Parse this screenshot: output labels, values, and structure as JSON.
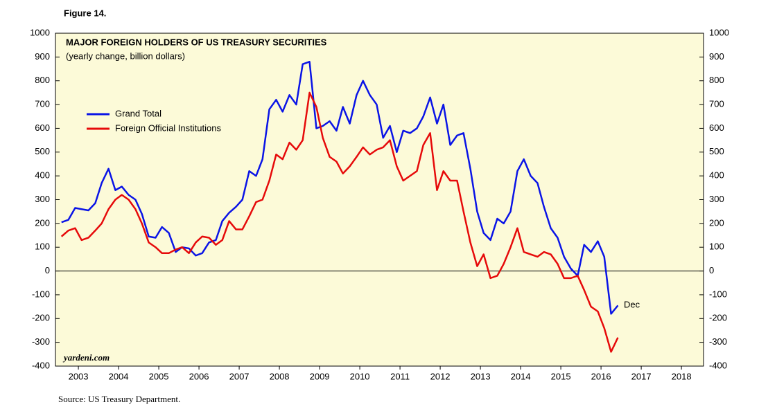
{
  "chart_data": {
    "type": "line",
    "figure_label": "Figure 14.",
    "title": "MAJOR FOREIGN HOLDERS OF US TREASURY SECURITIES",
    "subtitle": "(yearly change, billion dollars)",
    "source": "Source: US Treasury Department.",
    "watermark": "yardeni.com",
    "annotation": "Dec",
    "x": [
      2003.08,
      2003.25,
      2003.42,
      2003.58,
      2003.75,
      2003.92,
      2004.08,
      2004.25,
      2004.42,
      2004.58,
      2004.75,
      2004.92,
      2005.08,
      2005.25,
      2005.42,
      2005.58,
      2005.75,
      2005.92,
      2006.08,
      2006.25,
      2006.42,
      2006.58,
      2006.75,
      2006.92,
      2007.08,
      2007.25,
      2007.42,
      2007.58,
      2007.75,
      2007.92,
      2008.08,
      2008.25,
      2008.42,
      2008.58,
      2008.75,
      2008.92,
      2009.08,
      2009.25,
      2009.42,
      2009.58,
      2009.75,
      2009.92,
      2010.08,
      2010.25,
      2010.42,
      2010.58,
      2010.75,
      2010.92,
      2011.08,
      2011.25,
      2011.42,
      2011.58,
      2011.75,
      2011.92,
      2012.08,
      2012.25,
      2012.42,
      2012.58,
      2012.75,
      2012.92,
      2013.08,
      2013.25,
      2013.42,
      2013.58,
      2013.75,
      2013.92,
      2014.08,
      2014.25,
      2014.42,
      2014.58,
      2014.75,
      2014.92,
      2015.08,
      2015.25,
      2015.42,
      2015.58,
      2015.75,
      2015.92,
      2016.08,
      2016.25,
      2016.42,
      2016.58,
      2016.75,
      2016.92
    ],
    "series": [
      {
        "name": "Grand Total",
        "color": "#0a14e6",
        "values": [
          205,
          215,
          265,
          260,
          255,
          285,
          370,
          430,
          340,
          355,
          320,
          300,
          240,
          145,
          140,
          185,
          160,
          80,
          100,
          95,
          65,
          75,
          120,
          130,
          210,
          245,
          270,
          300,
          420,
          400,
          470,
          680,
          720,
          670,
          740,
          700,
          870,
          880,
          600,
          610,
          630,
          590,
          690,
          620,
          740,
          800,
          740,
          700,
          560,
          610,
          500,
          590,
          580,
          600,
          650,
          730,
          620,
          700,
          530,
          570,
          580,
          430,
          250,
          160,
          130,
          220,
          200,
          250,
          420,
          470,
          400,
          370,
          270,
          180,
          140,
          60,
          10,
          -20,
          110,
          80,
          125,
          60,
          -180,
          -145
        ]
      },
      {
        "name": "Foreign Official Institutions",
        "color": "#e60a0a",
        "values": [
          145,
          170,
          180,
          130,
          140,
          170,
          200,
          260,
          300,
          320,
          300,
          260,
          200,
          120,
          100,
          75,
          75,
          90,
          100,
          75,
          120,
          145,
          140,
          110,
          130,
          210,
          175,
          175,
          230,
          290,
          300,
          380,
          490,
          470,
          540,
          510,
          550,
          750,
          690,
          560,
          480,
          460,
          410,
          440,
          480,
          520,
          490,
          510,
          520,
          550,
          440,
          380,
          400,
          420,
          530,
          580,
          340,
          420,
          380,
          380,
          250,
          120,
          20,
          70,
          -30,
          -20,
          30,
          100,
          180,
          80,
          70,
          60,
          80,
          70,
          30,
          -30,
          -30,
          -20,
          -80,
          -150,
          -170,
          -240,
          -340,
          -280
        ]
      }
    ],
    "xlim": [
      2002.93,
      2019.05
    ],
    "xticks": [
      {
        "value": 2003.5,
        "label": "2003"
      },
      {
        "value": 2004.5,
        "label": "2004"
      },
      {
        "value": 2005.5,
        "label": "2005"
      },
      {
        "value": 2006.5,
        "label": "2006"
      },
      {
        "value": 2007.5,
        "label": "2007"
      },
      {
        "value": 2008.5,
        "label": "2008"
      },
      {
        "value": 2009.5,
        "label": "2009"
      },
      {
        "value": 2010.5,
        "label": "2010"
      },
      {
        "value": 2011.5,
        "label": "2011"
      },
      {
        "value": 2012.5,
        "label": "2012"
      },
      {
        "value": 2013.5,
        "label": "2013"
      },
      {
        "value": 2014.5,
        "label": "2014"
      },
      {
        "value": 2015.5,
        "label": "2015"
      },
      {
        "value": 2016.5,
        "label": "2016"
      },
      {
        "value": 2017.5,
        "label": "2017"
      },
      {
        "value": 2018.5,
        "label": "2018"
      }
    ],
    "ylim": [
      -400,
      1000
    ],
    "yticks": [
      -400,
      -300,
      -200,
      -100,
      0,
      100,
      200,
      300,
      400,
      500,
      600,
      700,
      800,
      900,
      1000
    ],
    "zero_line": true,
    "background": "#fcfad8"
  }
}
